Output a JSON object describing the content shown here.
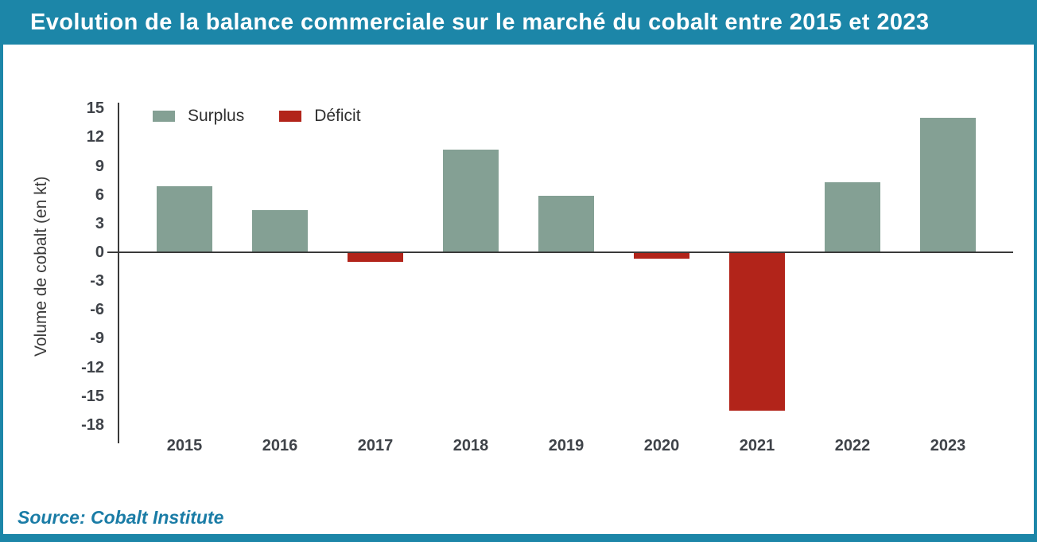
{
  "header": {
    "title": "Evolution de la balance commerciale sur le marché du cobalt entre 2015 et 2023"
  },
  "footer": {
    "source": "Source: Cobalt Institute"
  },
  "colors": {
    "accent_teal": "#1C86A8",
    "surplus_green": "#84A094",
    "deficit_red": "#B2241A",
    "axis_line": "#3A3A3A",
    "tick_text": "#3F4349",
    "source_text": "#1A7CA6"
  },
  "chart_data": {
    "type": "bar",
    "title": "Evolution de la balance commerciale sur le marché du cobalt entre 2015 et 2023",
    "categories": [
      "2015",
      "2016",
      "2017",
      "2018",
      "2019",
      "2020",
      "2021",
      "2022",
      "2023"
    ],
    "values": [
      6.9,
      4.4,
      -1.0,
      10.7,
      5.9,
      -0.7,
      -16.5,
      7.3,
      14.0
    ],
    "xlabel": "",
    "ylabel": "Volume de cobalt (en kt)",
    "yticks": [
      15,
      12,
      9,
      6,
      3,
      0,
      -3,
      -6,
      -9,
      -12,
      -15,
      -18
    ],
    "ylim": [
      -18,
      15
    ],
    "grid": false,
    "legend": [
      {
        "label": "Surplus",
        "color": "#84A094"
      },
      {
        "label": "Déficit",
        "color": "#B2241A"
      }
    ],
    "legend_position": "top-left-inside",
    "bar_colors": {
      "positive": "#84A094",
      "negative": "#B2241A"
    },
    "source": "Source: Cobalt Institute"
  }
}
